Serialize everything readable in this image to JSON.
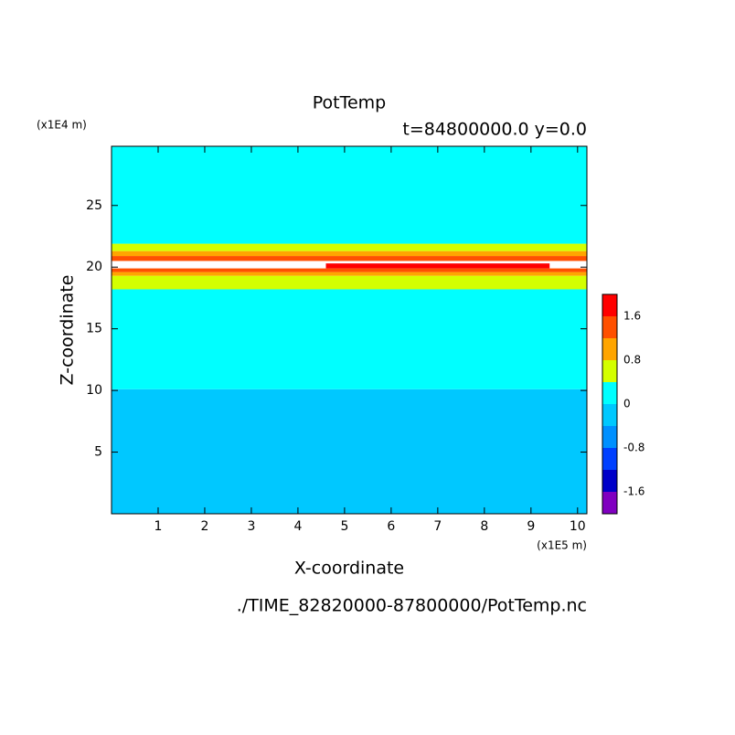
{
  "chart_data": {
    "type": "contour",
    "title": "PotTemp",
    "subtitle": "t=84800000.0 y=0.0",
    "xlabel": "X-coordinate",
    "ylabel": "Z-coordinate",
    "x_unit": "(x1E5 m)",
    "y_unit": "(x1E4 m)",
    "footer": "./TIME_82820000-87800000/PotTemp.nc",
    "xlim": [
      0,
      10.2
    ],
    "ylim": [
      0,
      29.8
    ],
    "xticks": [
      1,
      2,
      3,
      4,
      5,
      6,
      7,
      8,
      9,
      10
    ],
    "yticks": [
      5,
      10,
      15,
      20,
      25
    ],
    "levels": [
      -2.0,
      -1.6,
      -1.2,
      -0.8,
      -0.4,
      0,
      0.4,
      0.8,
      1.2,
      1.6,
      2.0
    ],
    "colors": [
      "#8000c0",
      "#0000c8",
      "#0040ff",
      "#0090ff",
      "#00c8ff",
      "#00ffff",
      "#d4ff00",
      "#ffa500",
      "#ff5000",
      "#ff0000",
      "#ffb0b0"
    ],
    "over_color": "#ffffff",
    "colorbar_ticks": [
      -1.6,
      -0.8,
      0,
      0.8,
      1.6
    ],
    "bands": [
      {
        "z0": 0,
        "z1": 10.1,
        "value": -0.2
      },
      {
        "z0": 10.1,
        "z1": 18.2,
        "value": 0.2
      },
      {
        "z0": 18.2,
        "z1": 19.3,
        "value": 0.6
      },
      {
        "z0": 19.3,
        "z1": 19.6,
        "value": 1.0
      },
      {
        "z0": 19.6,
        "z1": 19.9,
        "value": 1.4
      },
      {
        "z0": 19.9,
        "z1": 20.5,
        "value": 2.2
      },
      {
        "z0": 20.5,
        "z1": 20.9,
        "value": 1.4
      },
      {
        "z0": 20.9,
        "z1": 21.3,
        "value": 1.0
      },
      {
        "z0": 21.3,
        "z1": 21.9,
        "value": 0.6
      },
      {
        "z0": 21.9,
        "z1": 29.8,
        "value": 0.2
      }
    ],
    "patches": [
      {
        "x0": 4.6,
        "x1": 9.4,
        "z0": 19.9,
        "z1": 20.3,
        "value": 1.8
      }
    ]
  }
}
